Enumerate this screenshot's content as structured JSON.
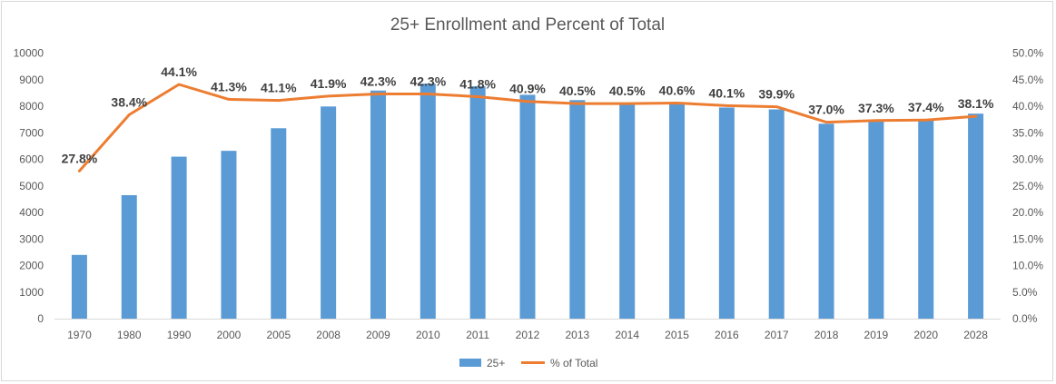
{
  "chart_data": {
    "type": "bar",
    "title": "25+ Enrollment and Percent of Total",
    "categories": [
      "1970",
      "1980",
      "1990",
      "2000",
      "2005",
      "2008",
      "2009",
      "2010",
      "2011",
      "2012",
      "2013",
      "2014",
      "2015",
      "2016",
      "2017",
      "2018",
      "2019",
      "2020",
      "2028"
    ],
    "series": [
      {
        "name": "25+",
        "type": "bar",
        "axis": "left",
        "color": "#5b9bd5",
        "values": [
          2400,
          4650,
          6100,
          6320,
          7170,
          7990,
          8590,
          8850,
          8750,
          8430,
          8230,
          8100,
          8100,
          7950,
          7880,
          7340,
          7450,
          7500,
          7720
        ]
      },
      {
        "name": "% of Total",
        "type": "line",
        "axis": "right",
        "color": "#ed7d31",
        "values": [
          27.8,
          38.4,
          44.1,
          41.3,
          41.1,
          41.9,
          42.3,
          42.3,
          41.8,
          40.9,
          40.5,
          40.5,
          40.6,
          40.1,
          39.9,
          37.0,
          37.3,
          37.4,
          38.1
        ],
        "data_labels": [
          "27.8%",
          "38.4%",
          "44.1%",
          "41.3%",
          "41.1%",
          "41.9%",
          "42.3%",
          "42.3%",
          "41.8%",
          "40.9%",
          "40.5%",
          "40.5%",
          "40.6%",
          "40.1%",
          "39.9%",
          "37.0%",
          "37.3%",
          "37.4%",
          "38.1%"
        ]
      }
    ],
    "y_left": {
      "min": 0,
      "max": 10000,
      "step": 1000,
      "tick_labels": [
        "0",
        "1000",
        "2000",
        "3000",
        "4000",
        "5000",
        "6000",
        "7000",
        "8000",
        "9000",
        "10000"
      ]
    },
    "y_right": {
      "min": 0,
      "max": 50,
      "step": 5,
      "tick_labels": [
        "0.0%",
        "5.0%",
        "10.0%",
        "15.0%",
        "20.0%",
        "25.0%",
        "30.0%",
        "35.0%",
        "40.0%",
        "45.0%",
        "50.0%"
      ]
    },
    "grid": false,
    "legend_position": "bottom"
  }
}
